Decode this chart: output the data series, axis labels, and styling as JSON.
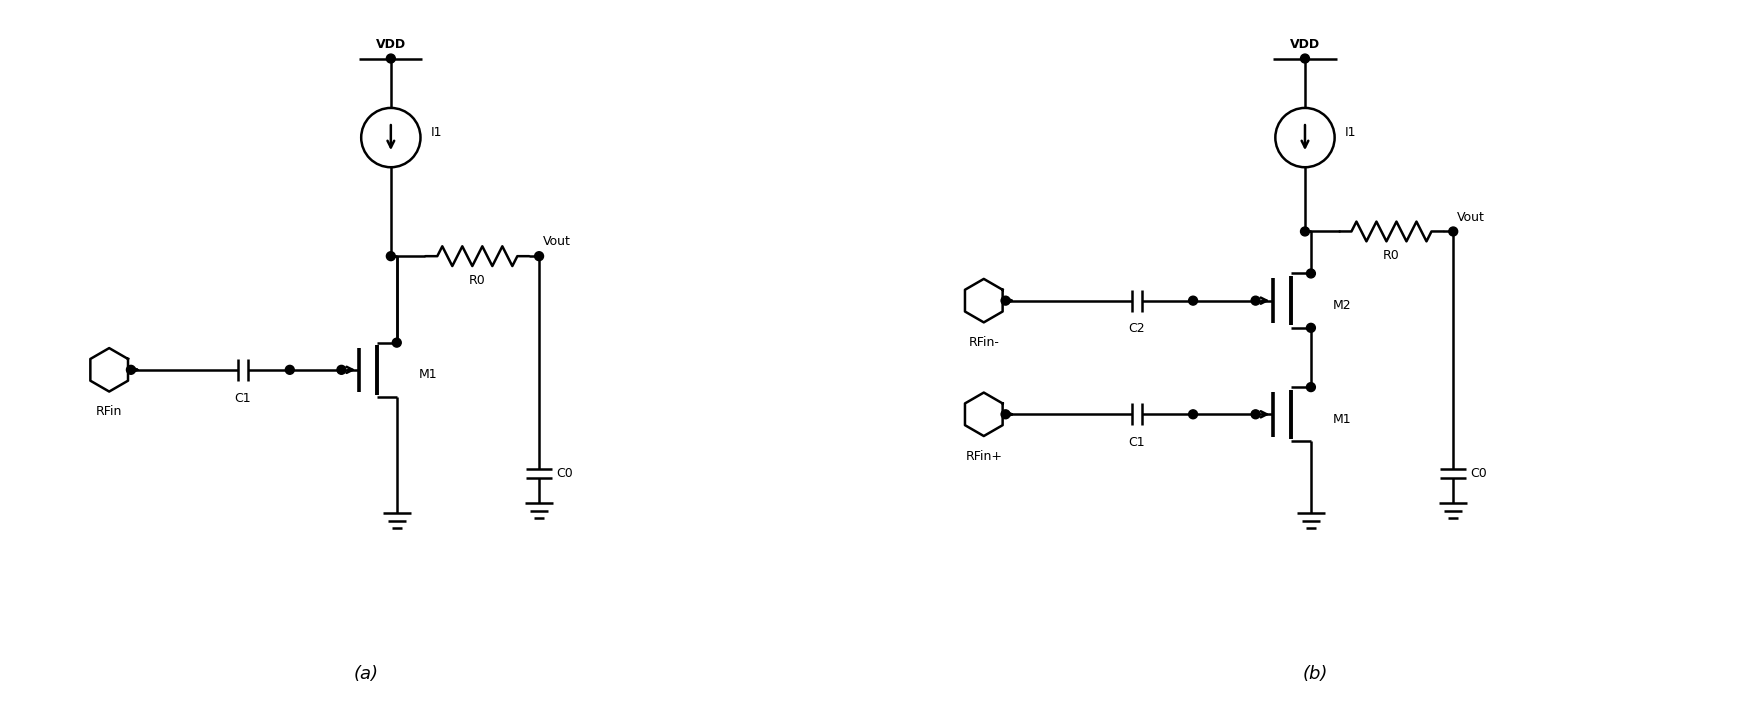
{
  "fig_width": 17.65,
  "fig_height": 7.1,
  "background_color": "#ffffff",
  "line_color": "#000000",
  "line_width": 1.8,
  "label_a": "(a)",
  "label_b": "(b)",
  "circuit_a": {
    "vdd_label": "VDD",
    "i1_label": "I1",
    "r0_label": "R0",
    "vout_label": "Vout",
    "c0_label": "C0",
    "m1_label": "M1",
    "c1_label": "C1",
    "rfin_label": "RFin"
  },
  "circuit_b": {
    "vdd_label": "VDD",
    "i1_label": "I1",
    "r0_label": "R0",
    "vout_label": "Vout",
    "c0_label": "C0",
    "m1_label": "M1",
    "m2_label": "M2",
    "c1_label": "C1",
    "c2_label": "C2",
    "rfin_plus_label": "RFin+",
    "rfin_minus_label": "RFin-"
  },
  "font_size": 9,
  "label_font_size": 13
}
